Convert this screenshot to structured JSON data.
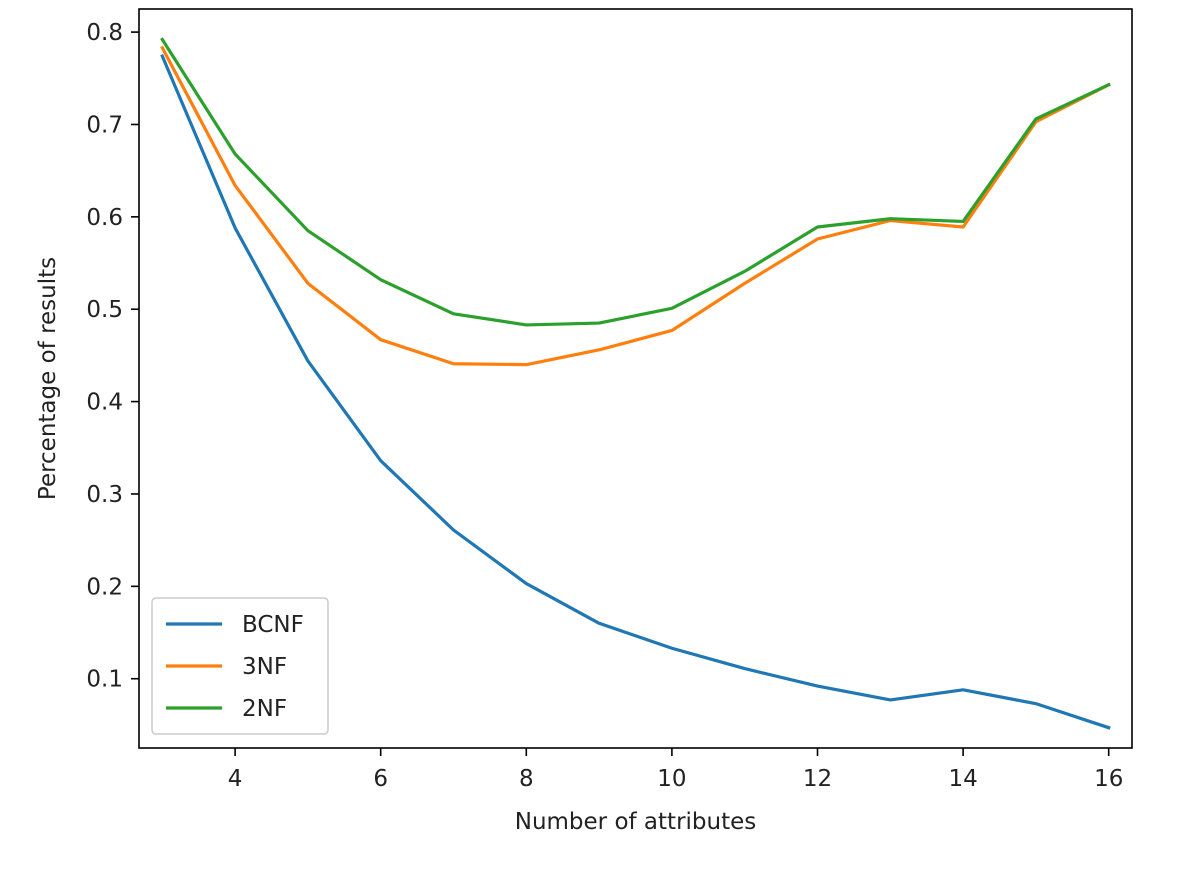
{
  "chart_data": {
    "type": "line",
    "xlabel": "Number of attributes",
    "ylabel": "Percentage of results",
    "xlim": [
      2.68,
      16.32
    ],
    "ylim": [
      0.025,
      0.825
    ],
    "xticks": [
      4,
      6,
      8,
      10,
      12,
      14,
      16
    ],
    "yticks": [
      0.1,
      0.2,
      0.3,
      0.4,
      0.5,
      0.6,
      0.7,
      0.8
    ],
    "xtick_labels": [
      "4",
      "6",
      "8",
      "10",
      "12",
      "14",
      "16"
    ],
    "ytick_labels": [
      "0.1",
      "0.2",
      "0.3",
      "0.4",
      "0.5",
      "0.6",
      "0.7",
      "0.8"
    ],
    "grid": false,
    "legend_position": "lower-left",
    "x": [
      3,
      4,
      5,
      6,
      7,
      8,
      9,
      10,
      11,
      12,
      13,
      14,
      15,
      16
    ],
    "series": [
      {
        "name": "BCNF",
        "color": "#1f77b4",
        "values": [
          0.774,
          0.588,
          0.444,
          0.336,
          0.261,
          0.203,
          0.16,
          0.133,
          0.111,
          0.092,
          0.077,
          0.088,
          0.073,
          0.047
        ]
      },
      {
        "name": "3NF",
        "color": "#ff7f0e",
        "values": [
          0.783,
          0.634,
          0.528,
          0.467,
          0.441,
          0.44,
          0.456,
          0.477,
          0.528,
          0.576,
          0.596,
          0.589,
          0.703,
          0.743
        ]
      },
      {
        "name": "2NF",
        "color": "#2ca02c",
        "values": [
          0.792,
          0.668,
          0.585,
          0.532,
          0.495,
          0.483,
          0.485,
          0.501,
          0.541,
          0.589,
          0.598,
          0.595,
          0.706,
          0.743
        ]
      }
    ]
  }
}
